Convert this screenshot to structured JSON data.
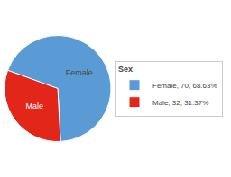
{
  "chart_data": {
    "type": "pie",
    "categories": [
      "Female",
      "Male"
    ],
    "values": [
      70,
      32
    ],
    "colors": [
      "#5b9bd5",
      "#e2271a"
    ],
    "legend_labels": [
      "Female, 70, 68.63%",
      "Male, 32, 31.37%"
    ],
    "legend_title": "Sex",
    "legend": "right"
  }
}
